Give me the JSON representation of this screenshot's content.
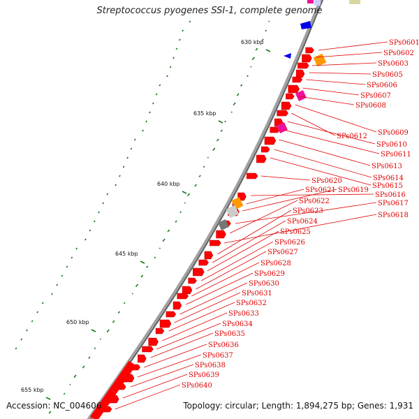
{
  "title": "Streptococcus pyogenes SSI-1, complete genome",
  "footer": {
    "accession": "Accession: NC_004606",
    "summary": "Topology: circular; Length: 1,894,275 bp; Genes: 1,931"
  },
  "colors": {
    "gene_forward": "#ff0000",
    "label": "#e00000",
    "backbone": "#a0a0a0",
    "gc_tick": "#1a7a1a",
    "blue_gene": "#0000ee",
    "orange_gene": "#ff9900",
    "magenta_gene": "#ee1199",
    "gray_gene": "#777777"
  },
  "kbp_labels": [
    "630 kbp",
    "635 kbp",
    "640 kbp",
    "645 kbp",
    "650 kbp",
    "655 kbp"
  ],
  "gene_labels": [
    "SPs0601",
    "SPs0602",
    "SPs0603",
    "SPs0605",
    "SPs0606",
    "SPs0607",
    "SPs0608",
    "SPs0609",
    "SPs0612",
    "SPs0610",
    "SPs0611",
    "SPs0613",
    "SPs0614",
    "SPs0615",
    "SPs0620",
    "SPs0616",
    "SPs0621",
    "SPs0619",
    "SPs0617",
    "SPs0622",
    "SPs0618",
    "SPs0623",
    "SPs0624",
    "SPs0625",
    "SPs0626",
    "SPs0627",
    "SPs0628",
    "SPs0629",
    "SPs0630",
    "SPs0631",
    "SPs0632",
    "SPs0633",
    "SPs0634",
    "SPs0635",
    "SPs0636",
    "SPs0637",
    "SPs0638",
    "SPs0639",
    "SPs0640"
  ]
}
